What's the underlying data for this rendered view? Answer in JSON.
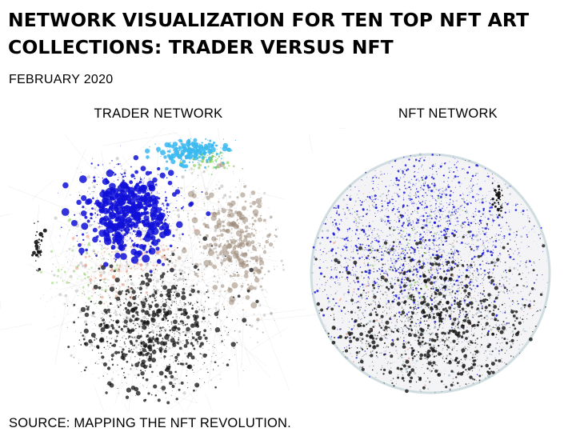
{
  "title": "NETWORK VISUALIZATION FOR TEN TOP NFT ART COLLECTIONS: TRADER VERSUS NFT",
  "date": "FEBRUARY 2020",
  "panels": {
    "left_label": "TRADER NETWORK",
    "right_label": "NFT NETWORK"
  },
  "source": "SOURCE: MAPPING THE NFT REVOLUTION.",
  "colors": {
    "blue": "#1010d8",
    "cyan": "#3ab8f0",
    "black": "#111111",
    "brown": "#9a8674",
    "salmon": "#e88a70",
    "green": "#7ac943",
    "gray": "#b8b8b8"
  }
}
